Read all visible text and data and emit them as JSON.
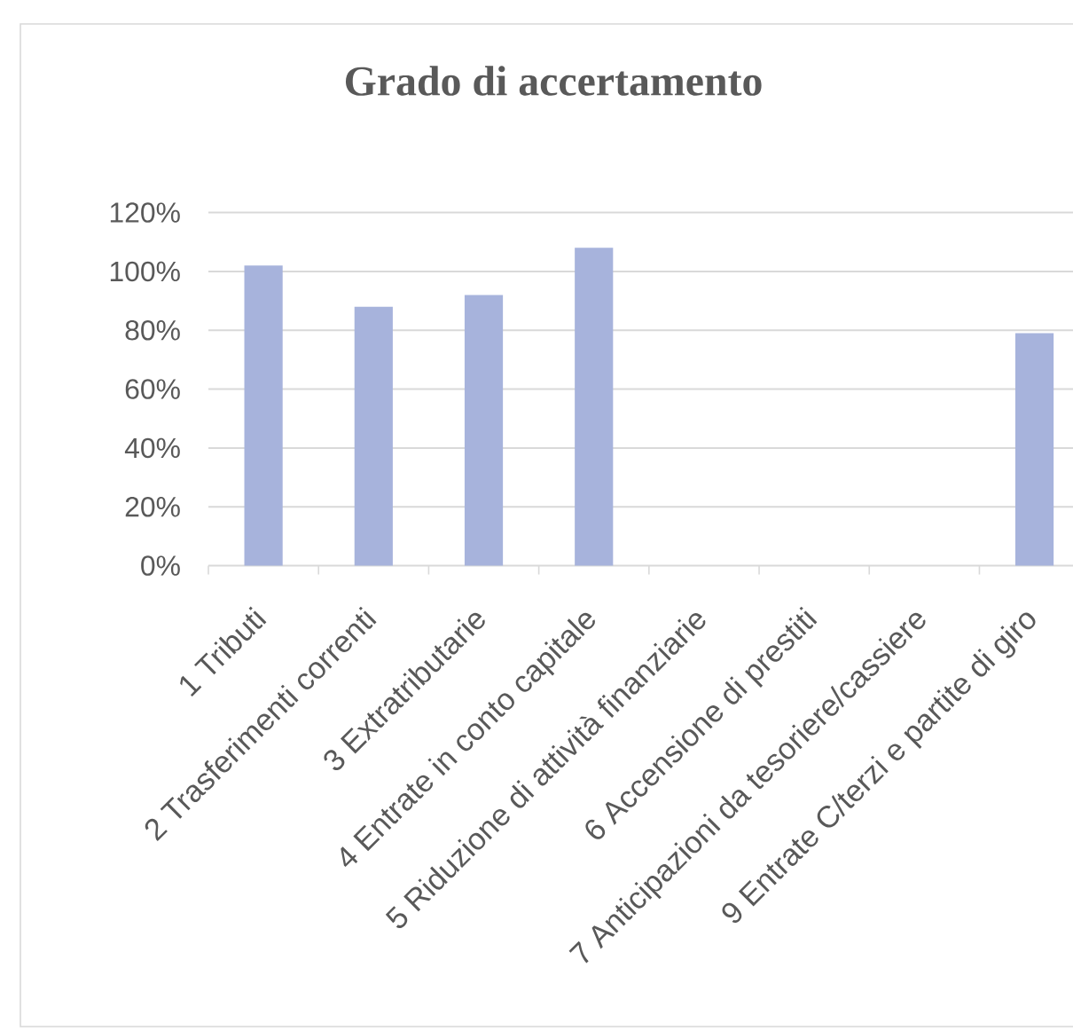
{
  "chart_data": {
    "type": "bar",
    "title": "Grado di accertamento",
    "categories": [
      "1 Tributi",
      "2 Trasferimenti correnti",
      "3 Extratributarie",
      "4 Entrate in conto capitale",
      "5 Riduzione di attività finanziarie",
      "6 Accensione di prestiti",
      "7 Anticipazioni da tesoriere/cassiere",
      "9 Entrate C/terzi e partite di giro"
    ],
    "values": [
      102,
      88,
      92,
      108,
      null,
      null,
      null,
      79
    ],
    "color": "#a7b3dc",
    "ylim": [
      0,
      120
    ],
    "yticks": [
      {
        "value": 0,
        "label": "0%"
      },
      {
        "value": 20,
        "label": "20%"
      },
      {
        "value": 40,
        "label": "40%"
      },
      {
        "value": 60,
        "label": "60%"
      },
      {
        "value": 80,
        "label": "80%"
      },
      {
        "value": 100,
        "label": "100%"
      },
      {
        "value": 120,
        "label": "120%"
      }
    ],
    "grid": "y"
  }
}
